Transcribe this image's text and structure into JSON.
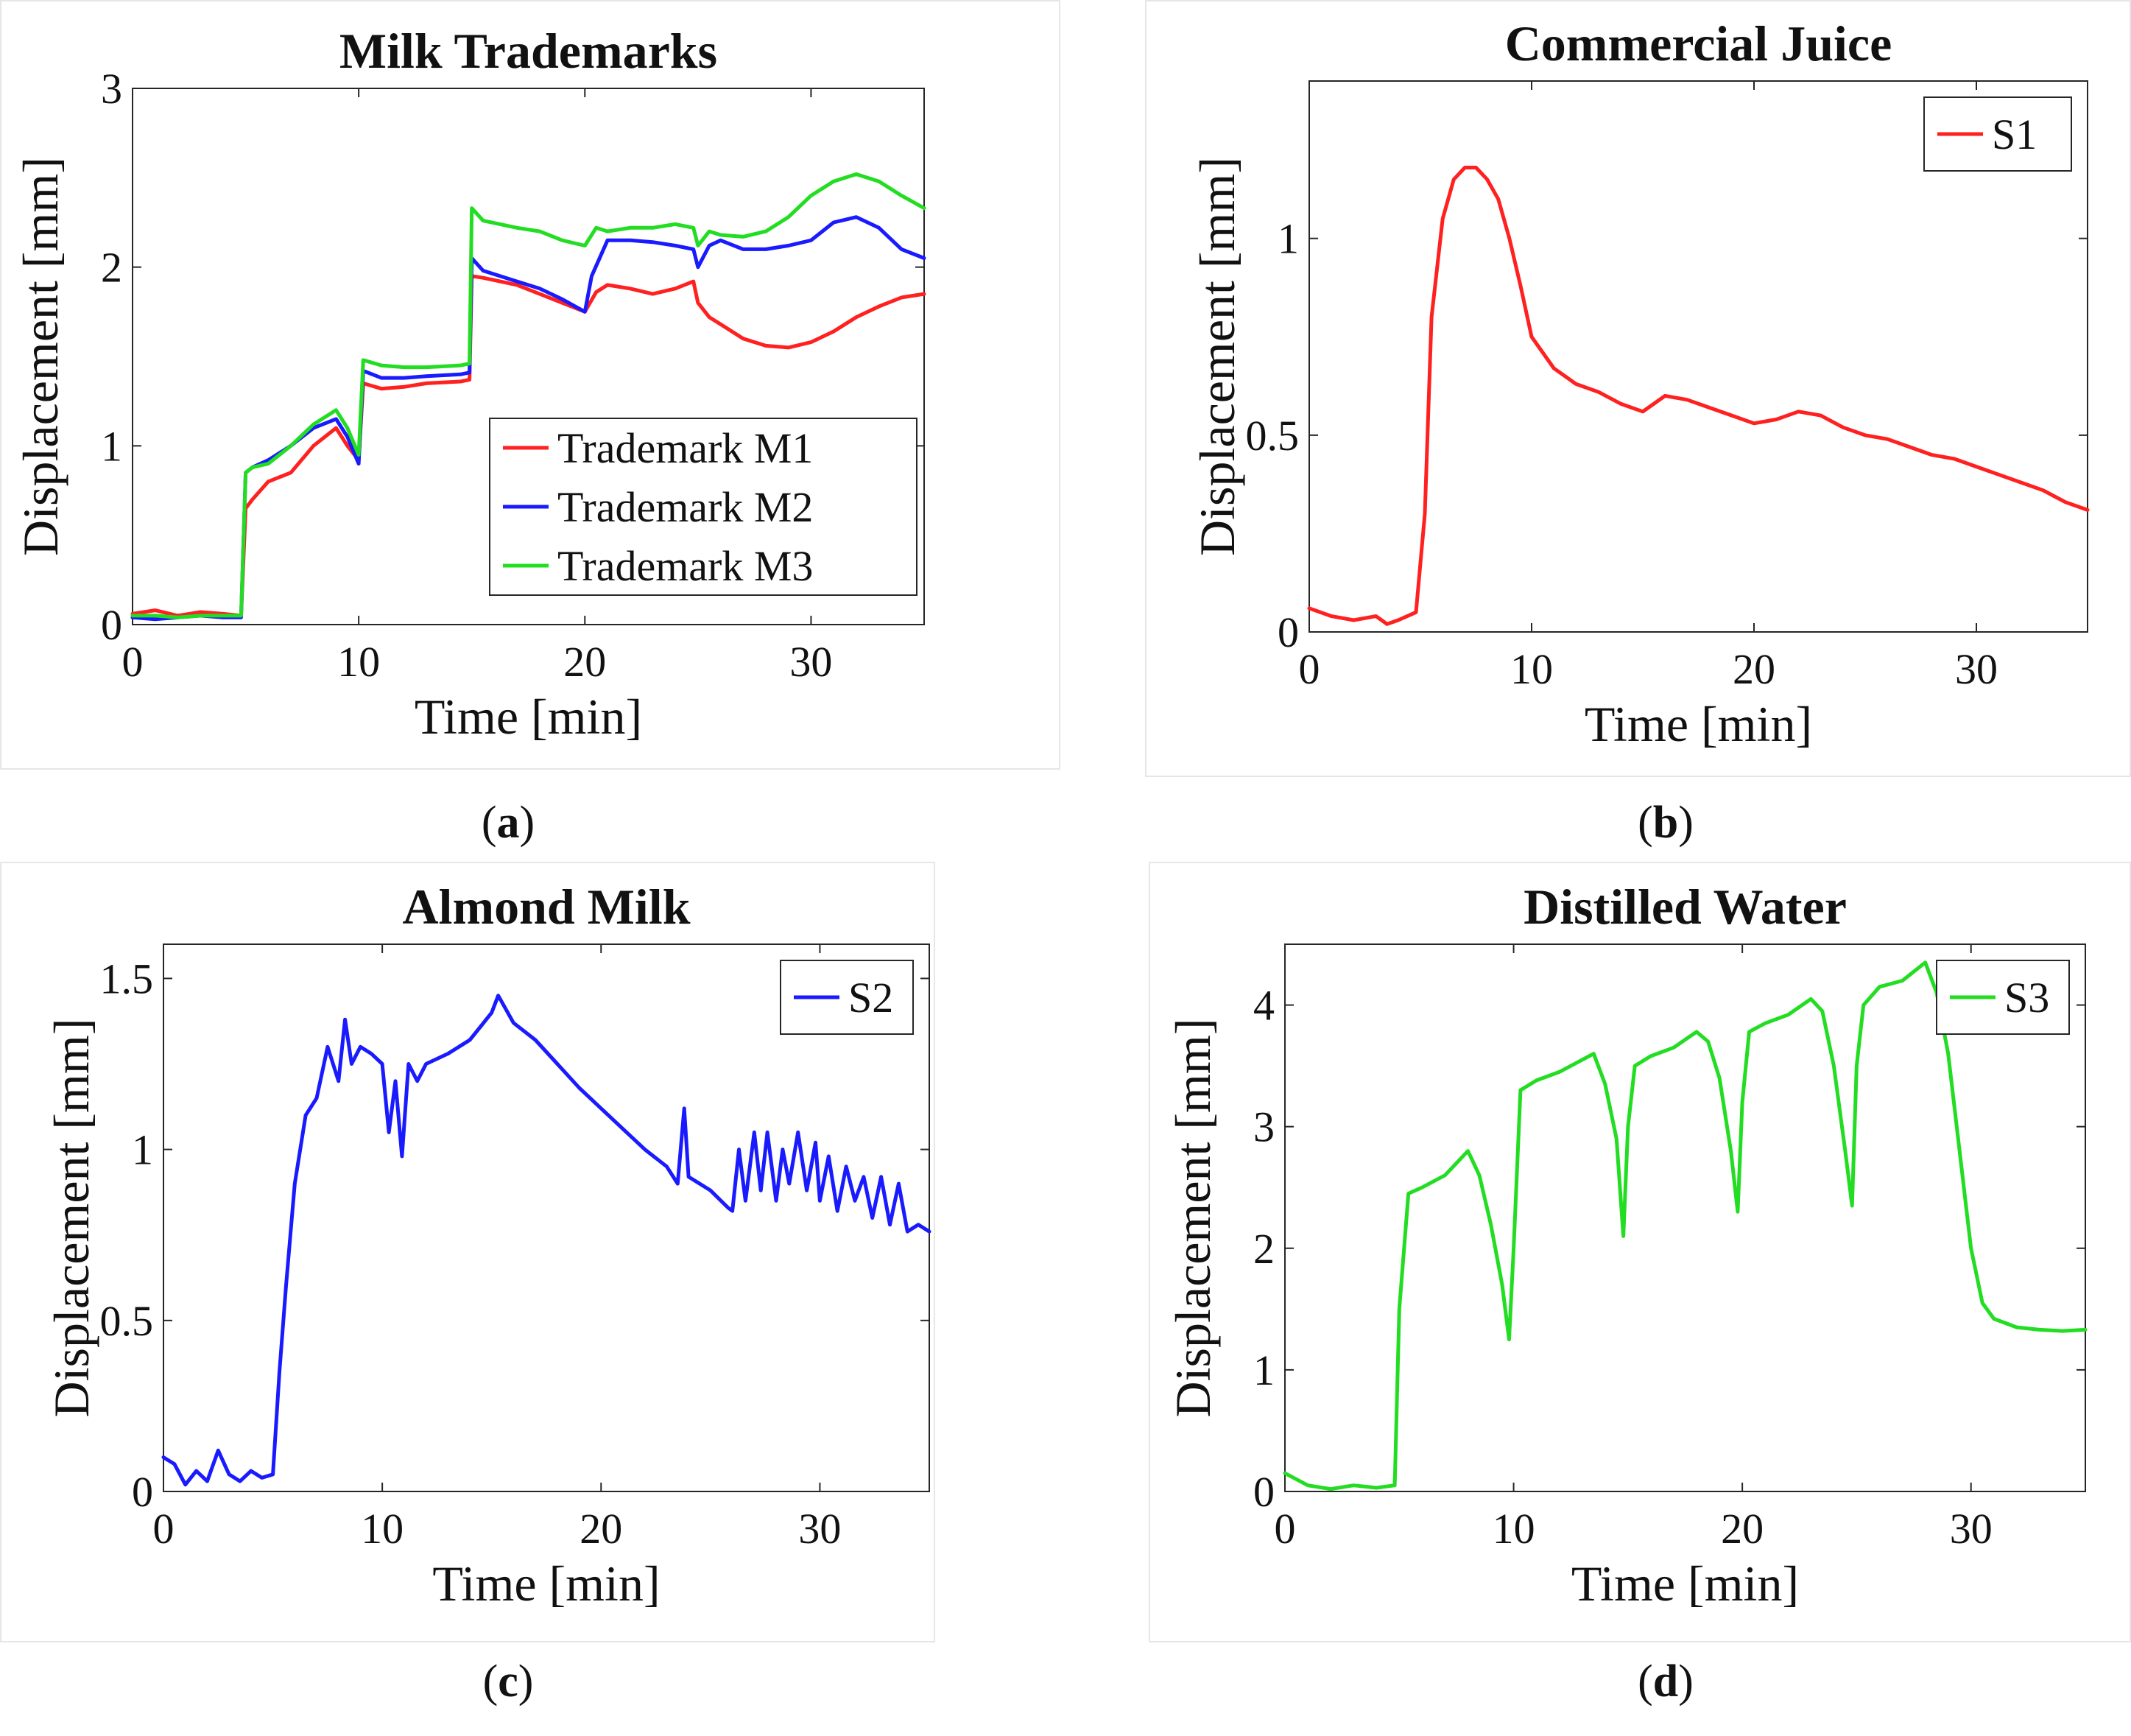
{
  "figure": {
    "captions": [
      {
        "open": "(",
        "letter": "a",
        "close": ")"
      },
      {
        "open": "(",
        "letter": "b",
        "close": ")"
      },
      {
        "open": "(",
        "letter": "c",
        "close": ")"
      },
      {
        "open": "(",
        "letter": "d",
        "close": ")"
      }
    ]
  },
  "chart_data": [
    {
      "type": "line",
      "title": "Milk Trademarks",
      "xlabel": "Time [min]",
      "ylabel": "Displacement [mm]",
      "xlim": [
        0,
        35
      ],
      "ylim": [
        0,
        3
      ],
      "xticks": [
        0,
        10,
        20,
        30
      ],
      "yticks": [
        0,
        1,
        2,
        3
      ],
      "legend_position": "lower-right",
      "series": [
        {
          "name": "Trademark M1",
          "color": "#ff2020",
          "x": [
            0,
            1,
            2,
            3,
            4,
            4.8,
            5,
            5.3,
            6,
            7,
            8,
            9,
            9.5,
            10,
            10.2,
            11,
            12,
            13,
            14.5,
            14.9,
            15,
            15.5,
            17,
            18,
            19,
            20,
            20.5,
            21,
            22,
            23,
            24,
            24.8,
            25,
            25.5,
            26,
            27,
            28,
            29,
            30,
            31,
            32,
            33,
            34,
            35
          ],
          "y": [
            0.06,
            0.08,
            0.05,
            0.07,
            0.06,
            0.05,
            0.65,
            0.7,
            0.8,
            0.85,
            1.0,
            1.1,
            1.0,
            0.92,
            1.35,
            1.32,
            1.33,
            1.35,
            1.36,
            1.37,
            1.95,
            1.94,
            1.9,
            1.85,
            1.8,
            1.75,
            1.86,
            1.9,
            1.88,
            1.85,
            1.88,
            1.92,
            1.8,
            1.72,
            1.68,
            1.6,
            1.56,
            1.55,
            1.58,
            1.64,
            1.72,
            1.78,
            1.83,
            1.85
          ]
        },
        {
          "name": "Trademark M2",
          "color": "#1a1aff",
          "x": [
            0,
            1,
            2,
            3,
            4,
            4.8,
            5,
            5.3,
            6,
            7,
            8,
            9,
            9.5,
            10,
            10.2,
            11,
            12,
            13,
            14.5,
            14.9,
            15,
            15.5,
            17,
            18,
            19,
            20,
            20.3,
            21,
            22,
            23,
            24,
            24.8,
            25,
            25.5,
            26,
            27,
            28,
            29,
            30,
            31,
            32,
            33,
            34,
            35
          ],
          "y": [
            0.04,
            0.03,
            0.04,
            0.05,
            0.04,
            0.04,
            0.85,
            0.88,
            0.92,
            1.0,
            1.1,
            1.15,
            1.05,
            0.9,
            1.42,
            1.38,
            1.38,
            1.39,
            1.4,
            1.41,
            2.05,
            1.98,
            1.92,
            1.88,
            1.82,
            1.75,
            1.95,
            2.15,
            2.15,
            2.14,
            2.12,
            2.1,
            2.0,
            2.12,
            2.15,
            2.1,
            2.1,
            2.12,
            2.15,
            2.25,
            2.28,
            2.22,
            2.1,
            2.05
          ]
        },
        {
          "name": "Trademark M3",
          "color": "#22dd22",
          "x": [
            0,
            1,
            2,
            3,
            4,
            4.8,
            5,
            5.3,
            6,
            7,
            8,
            9,
            9.5,
            10,
            10.2,
            11,
            12,
            13,
            14.5,
            14.9,
            15,
            15.5,
            17,
            18,
            19,
            20,
            20.5,
            21,
            22,
            23,
            24,
            24.8,
            25,
            25.5,
            26,
            27,
            28,
            29,
            30,
            31,
            32,
            33,
            34,
            35
          ],
          "y": [
            0.05,
            0.05,
            0.04,
            0.05,
            0.05,
            0.05,
            0.85,
            0.88,
            0.9,
            1.0,
            1.12,
            1.2,
            1.1,
            0.95,
            1.48,
            1.45,
            1.44,
            1.44,
            1.45,
            1.46,
            2.33,
            2.26,
            2.22,
            2.2,
            2.15,
            2.12,
            2.22,
            2.2,
            2.22,
            2.22,
            2.24,
            2.22,
            2.12,
            2.2,
            2.18,
            2.17,
            2.2,
            2.28,
            2.4,
            2.48,
            2.52,
            2.48,
            2.4,
            2.33
          ]
        }
      ]
    },
    {
      "type": "line",
      "title": "Commercial Juice",
      "xlabel": "Time [min]",
      "ylabel": "Displacement [mm]",
      "xlim": [
        0,
        35
      ],
      "ylim": [
        0,
        1.4
      ],
      "xticks": [
        0,
        10,
        20,
        30
      ],
      "yticks": [
        0,
        0.5,
        1
      ],
      "legend_position": "top-right",
      "series": [
        {
          "name": "S1",
          "color": "#ff2020",
          "x": [
            0,
            1,
            2,
            3,
            3.5,
            4,
            4.8,
            5.2,
            5.5,
            6,
            6.5,
            7,
            7.5,
            8,
            8.5,
            9,
            9.5,
            10,
            11,
            12,
            13,
            14,
            15,
            16,
            17,
            18,
            19,
            20,
            21,
            22,
            23,
            24,
            25,
            26,
            27,
            28,
            29,
            30,
            31,
            32,
            33,
            34,
            35
          ],
          "y": [
            0.06,
            0.04,
            0.03,
            0.04,
            0.02,
            0.03,
            0.05,
            0.3,
            0.8,
            1.05,
            1.15,
            1.18,
            1.18,
            1.15,
            1.1,
            1.0,
            0.88,
            0.75,
            0.67,
            0.63,
            0.61,
            0.58,
            0.56,
            0.6,
            0.59,
            0.57,
            0.55,
            0.53,
            0.54,
            0.56,
            0.55,
            0.52,
            0.5,
            0.49,
            0.47,
            0.45,
            0.44,
            0.42,
            0.4,
            0.38,
            0.36,
            0.33,
            0.31
          ]
        }
      ]
    },
    {
      "type": "line",
      "title": "Almond Milk",
      "xlabel": "Time [min]",
      "ylabel": "Displacement [mm]",
      "xlim": [
        0,
        35
      ],
      "ylim": [
        0,
        1.6
      ],
      "xticks": [
        0,
        10,
        20,
        30
      ],
      "yticks": [
        0,
        0.5,
        1,
        1.5
      ],
      "legend_position": "top-right",
      "series": [
        {
          "name": "S2",
          "color": "#1a1aff",
          "x": [
            0,
            0.5,
            1,
            1.5,
            2,
            2.5,
            3,
            3.5,
            4,
            4.5,
            5,
            5.3,
            5.6,
            6,
            6.5,
            7,
            7.5,
            8,
            8.3,
            8.6,
            9,
            9.5,
            10,
            10.3,
            10.6,
            10.9,
            11.2,
            11.6,
            12,
            13,
            14,
            14.5,
            15,
            15.3,
            16,
            17,
            18,
            19,
            20,
            21,
            22,
            23,
            23.5,
            23.8,
            24,
            25,
            25.8,
            26,
            26.3,
            26.6,
            27,
            27.3,
            27.6,
            28,
            28.3,
            28.6,
            29,
            29.4,
            29.8,
            30,
            30.4,
            30.8,
            31.2,
            31.6,
            32,
            32.4,
            32.8,
            33.2,
            33.6,
            34,
            34.5,
            35
          ],
          "y": [
            0.1,
            0.08,
            0.02,
            0.06,
            0.03,
            0.12,
            0.05,
            0.03,
            0.06,
            0.04,
            0.05,
            0.35,
            0.6,
            0.9,
            1.1,
            1.15,
            1.3,
            1.2,
            1.38,
            1.25,
            1.3,
            1.28,
            1.25,
            1.05,
            1.2,
            0.98,
            1.25,
            1.2,
            1.25,
            1.28,
            1.32,
            1.36,
            1.4,
            1.45,
            1.37,
            1.32,
            1.25,
            1.18,
            1.12,
            1.06,
            1.0,
            0.95,
            0.9,
            1.12,
            0.92,
            0.88,
            0.83,
            0.82,
            1.0,
            0.85,
            1.05,
            0.88,
            1.05,
            0.85,
            1.0,
            0.9,
            1.05,
            0.88,
            1.02,
            0.85,
            0.98,
            0.82,
            0.95,
            0.85,
            0.92,
            0.8,
            0.92,
            0.78,
            0.9,
            0.76,
            0.78,
            0.76
          ]
        }
      ]
    },
    {
      "type": "line",
      "title": "Distilled Water",
      "xlabel": "Time [min]",
      "ylabel": "Displacement [mm]",
      "xlim": [
        0,
        35
      ],
      "ylim": [
        0,
        4.5
      ],
      "xticks": [
        0,
        10,
        20,
        30
      ],
      "yticks": [
        0,
        1,
        2,
        3,
        4
      ],
      "legend_position": "top-right",
      "series": [
        {
          "name": "S3",
          "color": "#22dd22",
          "x": [
            0,
            1,
            2,
            3,
            4,
            4.8,
            5,
            5.4,
            6,
            7,
            8,
            8.5,
            9,
            9.5,
            9.8,
            10,
            10.3,
            11,
            12,
            13,
            13.5,
            14,
            14.5,
            14.8,
            15,
            15.3,
            16,
            17,
            18,
            18.5,
            19,
            19.5,
            19.8,
            20,
            20.3,
            21,
            22,
            23,
            23.5,
            24,
            24.5,
            24.8,
            25,
            25.3,
            26,
            27,
            28,
            28.5,
            29,
            29.5,
            30,
            30.5,
            31,
            32,
            33,
            34,
            35
          ],
          "y": [
            0.15,
            0.05,
            0.02,
            0.05,
            0.03,
            0.05,
            1.5,
            2.45,
            2.5,
            2.6,
            2.8,
            2.6,
            2.2,
            1.7,
            1.25,
            2.0,
            3.3,
            3.38,
            3.45,
            3.55,
            3.6,
            3.35,
            2.9,
            2.1,
            3.0,
            3.5,
            3.58,
            3.65,
            3.78,
            3.7,
            3.4,
            2.8,
            2.3,
            3.2,
            3.78,
            3.85,
            3.92,
            4.05,
            3.95,
            3.5,
            2.8,
            2.35,
            3.5,
            4.0,
            4.15,
            4.2,
            4.35,
            4.1,
            3.6,
            2.8,
            2.0,
            1.55,
            1.42,
            1.35,
            1.33,
            1.32,
            1.33
          ]
        }
      ]
    }
  ]
}
